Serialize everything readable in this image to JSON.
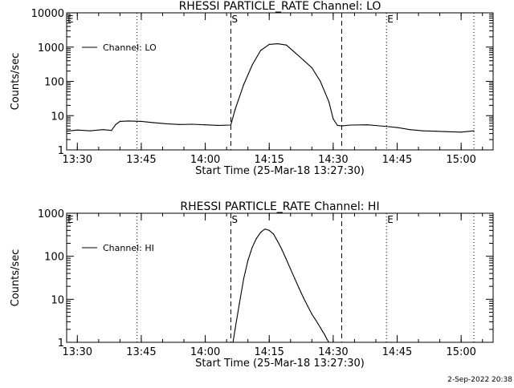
{
  "footer_timestamp": "2-Sep-2022 20:38",
  "chart_data": [
    {
      "type": "line",
      "title": "RHESSI PARTICLE_RATE Channel: LO",
      "xlabel": "Start Time (25-Mar-18 13:27:30)",
      "ylabel": "Counts/sec",
      "yscale": "log",
      "xlim": [
        "13:27:30",
        "15:07:30"
      ],
      "ylim": [
        1,
        10000
      ],
      "x_ticks": [
        "13:30",
        "13:45",
        "14:00",
        "14:15",
        "14:30",
        "14:45",
        "15:00"
      ],
      "y_ticks": [
        "1",
        "10",
        "100",
        "1000",
        "10000"
      ],
      "grid": false,
      "legend": {
        "position": "top-left",
        "entries": [
          "Channel: LO"
        ]
      },
      "markers": [
        {
          "label": "E",
          "time": "13:27:30",
          "style": "dotted"
        },
        {
          "label": "",
          "time": "13:44:00",
          "style": "dotted"
        },
        {
          "label": "S",
          "time": "14:06:00",
          "style": "dashed"
        },
        {
          "label": "",
          "time": "14:32:00",
          "style": "dashed"
        },
        {
          "label": "E",
          "time": "14:42:30",
          "style": "dotted"
        },
        {
          "label": "",
          "time": "15:03:00",
          "style": "dotted"
        }
      ],
      "series": [
        {
          "name": "Channel: LO",
          "x": [
            "13:27:30",
            "13:30",
            "13:33",
            "13:36",
            "13:38",
            "13:39",
            "13:40",
            "13:42",
            "13:45",
            "13:48",
            "13:51",
            "13:54",
            "13:57",
            "14:00",
            "14:03",
            "14:06",
            "14:07",
            "14:09",
            "14:11",
            "14:13",
            "14:15",
            "14:17",
            "14:19",
            "14:21",
            "14:23",
            "14:25",
            "14:27",
            "14:29",
            "14:30",
            "14:31",
            "14:32",
            "14:34",
            "14:38",
            "14:42",
            "14:45",
            "14:48",
            "14:51",
            "14:54",
            "14:57",
            "15:00",
            "15:03"
          ],
          "y": [
            3.5,
            3.8,
            3.6,
            3.9,
            3.7,
            5.5,
            6.8,
            7.0,
            6.8,
            6.2,
            5.8,
            5.5,
            5.6,
            5.4,
            5.2,
            5.3,
            15,
            80,
            300,
            800,
            1200,
            1250,
            1150,
            700,
            420,
            250,
            100,
            25,
            8,
            5.2,
            5.0,
            5.3,
            5.4,
            4.9,
            4.5,
            3.9,
            3.6,
            3.5,
            3.4,
            3.3,
            3.6
          ]
        }
      ]
    },
    {
      "type": "line",
      "title": "RHESSI PARTICLE_RATE Channel: HI",
      "xlabel": "Start Time (25-Mar-18 13:27:30)",
      "ylabel": "Counts/sec",
      "yscale": "log",
      "xlim": [
        "13:27:30",
        "15:07:30"
      ],
      "ylim": [
        1,
        1000
      ],
      "x_ticks": [
        "13:30",
        "13:45",
        "14:00",
        "14:15",
        "14:30",
        "14:45",
        "15:00"
      ],
      "y_ticks": [
        "1",
        "10",
        "100",
        "1000"
      ],
      "grid": false,
      "legend": {
        "position": "top-left",
        "entries": [
          "Channel: HI"
        ]
      },
      "markers": [
        {
          "label": "E",
          "time": "13:27:30",
          "style": "dotted"
        },
        {
          "label": "",
          "time": "13:44:00",
          "style": "dotted"
        },
        {
          "label": "S",
          "time": "14:06:00",
          "style": "dashed"
        },
        {
          "label": "",
          "time": "14:32:00",
          "style": "dashed"
        },
        {
          "label": "E",
          "time": "14:42:30",
          "style": "dotted"
        },
        {
          "label": "",
          "time": "15:03:00",
          "style": "dotted"
        }
      ],
      "series": [
        {
          "name": "Channel: HI",
          "x": [
            "14:06:30",
            "14:07",
            "14:08",
            "14:09",
            "14:10",
            "14:11",
            "14:12",
            "14:13",
            "14:14",
            "14:15",
            "14:16",
            "14:17",
            "14:18",
            "14:19",
            "14:20",
            "14:21",
            "14:22",
            "14:23",
            "14:24",
            "14:25",
            "14:26",
            "14:27",
            "14:27:30",
            "14:28",
            "14:28:30",
            "14:29"
          ],
          "y": [
            1,
            2,
            8,
            30,
            80,
            160,
            260,
            360,
            430,
            400,
            330,
            220,
            140,
            85,
            50,
            30,
            18,
            11,
            7,
            4.5,
            3.2,
            2.2,
            1.8,
            1.5,
            1.2,
            1
          ]
        }
      ]
    }
  ]
}
